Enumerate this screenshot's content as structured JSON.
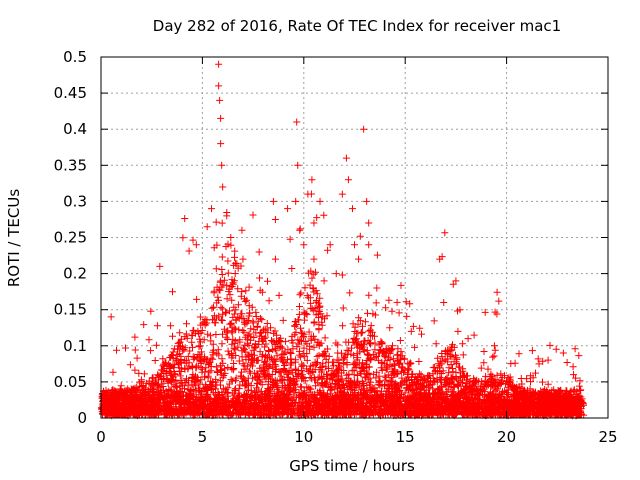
{
  "chart_data": {
    "type": "scatter",
    "title": "Day 282 of 2016, Rate Of TEC Index for receiver mac1",
    "xlabel": "GPS time / hours",
    "ylabel": "ROTI / TECUs",
    "xlim": [
      0,
      25
    ],
    "ylim": [
      0,
      0.5
    ],
    "x_ticks": [
      0,
      5,
      10,
      15,
      20,
      25
    ],
    "y_ticks": [
      0,
      0.05,
      0.1,
      0.15,
      0.2,
      0.25,
      0.3,
      0.35,
      0.4,
      0.45,
      0.5
    ],
    "x_tick_labels": [
      "0",
      "5",
      "10",
      "15",
      "20",
      "25"
    ],
    "y_tick_labels": [
      "0",
      "0.05",
      "0.1",
      "0.15",
      "0.2",
      "0.25",
      "0.3",
      "0.35",
      "0.4",
      "0.45",
      "0.5"
    ],
    "grid": true,
    "marker": "+",
    "marker_color": "#ff0000",
    "series": [
      {
        "name": "ROTI",
        "points": [
          [
            0.5,
            0.14
          ],
          [
            2.9,
            0.21
          ],
          [
            4.7,
            0.24
          ],
          [
            5.45,
            0.29
          ],
          [
            5.8,
            0.49
          ],
          [
            5.8,
            0.46
          ],
          [
            5.85,
            0.44
          ],
          [
            5.9,
            0.415
          ],
          [
            5.9,
            0.38
          ],
          [
            5.95,
            0.35
          ],
          [
            6.0,
            0.32
          ],
          [
            6.2,
            0.28
          ],
          [
            6.4,
            0.25
          ],
          [
            6.95,
            0.26
          ],
          [
            7.0,
            0.22
          ],
          [
            7.8,
            0.23
          ],
          [
            8.6,
            0.22
          ],
          [
            8.5,
            0.3
          ],
          [
            8.6,
            0.275
          ],
          [
            9.2,
            0.29
          ],
          [
            9.6,
            0.3
          ],
          [
            9.7,
            0.35
          ],
          [
            9.65,
            0.41
          ],
          [
            9.8,
            0.26
          ],
          [
            10.0,
            0.24
          ],
          [
            10.2,
            0.31
          ],
          [
            10.4,
            0.33
          ],
          [
            10.5,
            0.27
          ],
          [
            10.5,
            0.22
          ],
          [
            10.8,
            0.3
          ],
          [
            11.0,
            0.19
          ],
          [
            11.3,
            0.24
          ],
          [
            11.6,
            0.2
          ],
          [
            11.9,
            0.31
          ],
          [
            12.1,
            0.36
          ],
          [
            12.2,
            0.33
          ],
          [
            12.4,
            0.29
          ],
          [
            12.5,
            0.24
          ],
          [
            12.7,
            0.22
          ],
          [
            12.95,
            0.4
          ],
          [
            13.1,
            0.3
          ],
          [
            13.2,
            0.27
          ],
          [
            13.2,
            0.24
          ],
          [
            13.6,
            0.18
          ],
          [
            15.3,
            0.12
          ],
          [
            16.7,
            0.22
          ],
          [
            16.9,
            0.16
          ],
          [
            17.5,
            0.19
          ],
          [
            17.7,
            0.15
          ],
          [
            17.6,
            0.12
          ],
          [
            18.1,
            0.11
          ],
          [
            19.4,
            0.1
          ],
          [
            21.6,
            0.075
          ],
          [
            22.8,
            0.09
          ],
          [
            23.3,
            0.06
          ]
        ]
      }
    ]
  }
}
